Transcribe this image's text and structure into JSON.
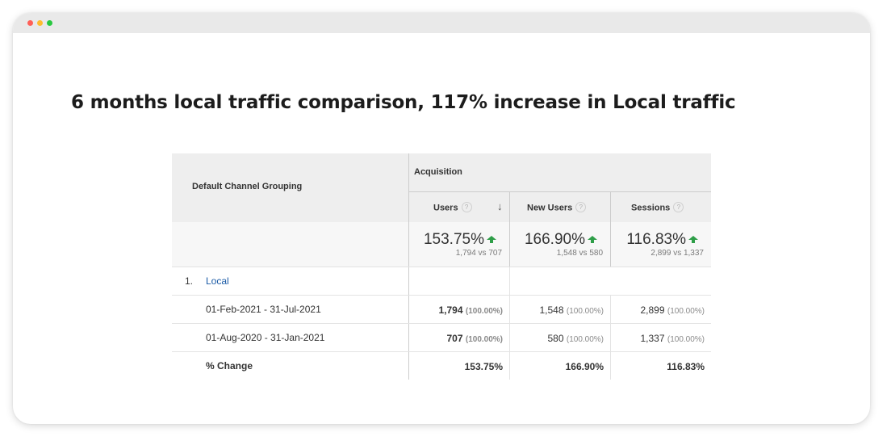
{
  "window": {
    "controls": [
      {
        "name": "close",
        "color": "#ff5f57"
      },
      {
        "name": "minimize",
        "color": "#febc2e"
      },
      {
        "name": "maximize",
        "color": "#28c840"
      }
    ]
  },
  "headline": "6 months local traffic comparison, 117% increase in Local traffic",
  "report": {
    "dimension_header": "Default Channel Grouping",
    "group_header": "Acquisition",
    "columns": [
      {
        "label": "Users",
        "help": "?"
      },
      {
        "label": "New Users",
        "help": "?"
      },
      {
        "label": "Sessions",
        "help": "?"
      }
    ],
    "summary": [
      {
        "change": "153.75%",
        "comparison": "1,794 vs 707"
      },
      {
        "change": "166.90%",
        "comparison": "1,548 vs 580"
      },
      {
        "change": "116.83%",
        "comparison": "2,899 vs 1,337"
      }
    ],
    "channel": {
      "index": "1.",
      "name": "Local"
    },
    "rows": [
      {
        "label": "01-Feb-2021 - 31-Jul-2021",
        "values": [
          {
            "value": "1,794",
            "pct": "(100.00%)"
          },
          {
            "value": "1,548",
            "pct": "(100.00%)"
          },
          {
            "value": "2,899",
            "pct": "(100.00%)"
          }
        ]
      },
      {
        "label": "01-Aug-2020 - 31-Jan-2021",
        "values": [
          {
            "value": "707",
            "pct": "(100.00%)"
          },
          {
            "value": "580",
            "pct": "(100.00%)"
          },
          {
            "value": "1,337",
            "pct": "(100.00%)"
          }
        ]
      }
    ],
    "change_row": {
      "label": "% Change",
      "values": [
        "153.75%",
        "166.90%",
        "116.83%"
      ]
    },
    "accent_up_color": "#2e9e48",
    "link_color": "#1a5aa6"
  }
}
